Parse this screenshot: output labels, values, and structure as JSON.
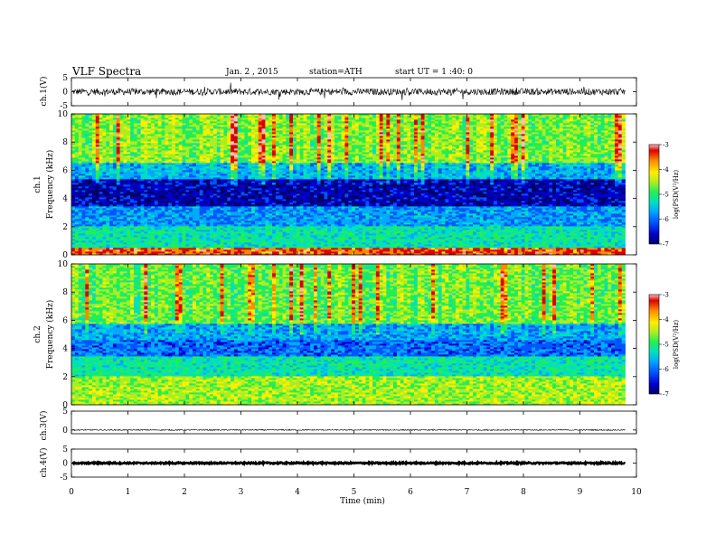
{
  "header": {
    "title": "VLF  Spectra",
    "date": "Jan. 2 , 2015",
    "station": "station=ATH",
    "start": "start  UT =   1 :40: 0"
  },
  "colors": {
    "colormap": [
      "#000066",
      "#0000cc",
      "#0055ff",
      "#00aaff",
      "#00e0c0",
      "#22ee55",
      "#aaee22",
      "#ffee00",
      "#ff8800",
      "#dd0000",
      "#ffbbbb"
    ],
    "trace": "#000000"
  },
  "chart_data": [
    {
      "type": "line",
      "ylabel": "ch.1(V)",
      "yticks": [
        "5",
        "0",
        "-5"
      ],
      "ylim": [
        -5,
        5
      ],
      "description_x": [
        0,
        10
      ],
      "series": [
        {
          "baseline": 0,
          "noise_amplitude": 1.2,
          "spike_amplitude": 2.4
        }
      ]
    },
    {
      "type": "heatmap",
      "ylabel": [
        "ch.1",
        "Frequency  (kHz)"
      ],
      "yticks": [
        "0",
        "2",
        "4",
        "6",
        "8",
        "10"
      ],
      "ylim": [
        0,
        10
      ],
      "colorbar": {
        "label": "log(PSD(V²/Hz)",
        "ticks": [
          "-3",
          "-4",
          "-5",
          "-6",
          "-7"
        ],
        "range": [
          -7,
          -3
        ]
      },
      "bands_log_psd": [
        {
          "f": [
            0.0,
            0.5
          ],
          "level": -3.6
        },
        {
          "f": [
            0.5,
            2.0
          ],
          "level": -5.3
        },
        {
          "f": [
            2.0,
            3.4
          ],
          "level": -5.9
        },
        {
          "f": [
            3.4,
            5.4
          ],
          "level": -6.7
        },
        {
          "f": [
            5.4,
            6.5
          ],
          "level": -5.7
        },
        {
          "f": [
            6.5,
            10.0
          ],
          "level": -4.7
        }
      ]
    },
    {
      "type": "heatmap",
      "ylabel": [
        "ch.2",
        "Frequency  (kHz)"
      ],
      "yticks": [
        "0",
        "2",
        "4",
        "6",
        "8",
        "10"
      ],
      "ylim": [
        0,
        10
      ],
      "colorbar": {
        "label": "log(PSD(V²/Hz)",
        "ticks": [
          "-3",
          "-4",
          "-5",
          "-6",
          "-7"
        ],
        "range": [
          -7,
          -3
        ]
      },
      "bands_log_psd": [
        {
          "f": [
            0.0,
            2.0
          ],
          "level": -4.6
        },
        {
          "f": [
            2.0,
            3.4
          ],
          "level": -5.3
        },
        {
          "f": [
            3.4,
            4.6
          ],
          "level": -6.1
        },
        {
          "f": [
            4.6,
            5.8
          ],
          "level": -5.8
        },
        {
          "f": [
            5.8,
            10.0
          ],
          "level": -4.8
        }
      ]
    },
    {
      "type": "line",
      "ylabel": "ch.3(V)",
      "yticks": [
        "5",
        "0"
      ],
      "ylim": [
        -1,
        5
      ],
      "series": [
        {
          "baseline": 0,
          "noise_amplitude": 0.15
        }
      ]
    },
    {
      "type": "line",
      "ylabel": "ch.4(V)",
      "yticks": [
        "5",
        "0",
        "-5"
      ],
      "ylim": [
        -5,
        5
      ],
      "series": [
        {
          "baseline": 0,
          "noise_amplitude": 0.25
        }
      ]
    }
  ],
  "xaxis": {
    "label": "Time  (min)",
    "ticks": [
      "0",
      "1",
      "2",
      "3",
      "4",
      "5",
      "6",
      "7",
      "8",
      "9",
      "10"
    ],
    "xlim": [
      0,
      10
    ],
    "data_end": 9.8
  }
}
